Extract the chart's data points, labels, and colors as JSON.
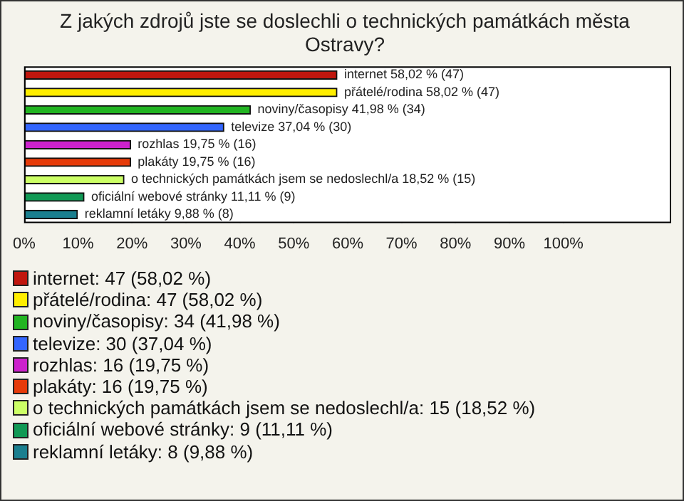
{
  "chart_data": {
    "type": "bar",
    "orientation": "horizontal",
    "title": "Z jakých zdrojů jste se doslechli o technických památkách města Ostravy?",
    "categories": [
      "internet",
      "přátelé/rodina",
      "noviny/časopisy",
      "televize",
      "rozhlas",
      "plakáty",
      "o technických památkách jsem se nedoslechl/a",
      "oficiální webové stránky",
      "reklamní letáky"
    ],
    "values": [
      58.02,
      58.02,
      41.98,
      37.04,
      19.75,
      19.75,
      18.52,
      11.11,
      9.88
    ],
    "value_labels": [
      "58,02 % (47)",
      "58,02 % (47)",
      "41,98 % (34)",
      "37,04 % (30)",
      "19,75 % (16)",
      "19,75 % (16)",
      "18,52 % (15)",
      "11,11 % (9)",
      "9,88 % (8)"
    ],
    "colors": [
      "#c0160e",
      "#ffee00",
      "#22b422",
      "#3366ff",
      "#cc22cc",
      "#e63b0a",
      "#ccff66",
      "#119955",
      "#1a7f8f"
    ],
    "xlim": [
      0,
      120
    ],
    "xticks": [
      {
        "value": 0,
        "label": "0%"
      },
      {
        "value": 10,
        "label": "10%"
      },
      {
        "value": 20,
        "label": "20%"
      },
      {
        "value": 30,
        "label": "30%"
      },
      {
        "value": 40,
        "label": "40%"
      },
      {
        "value": 50,
        "label": "50%"
      },
      {
        "value": 60,
        "label": "60%"
      },
      {
        "value": 70,
        "label": "70%"
      },
      {
        "value": 80,
        "label": "80%"
      },
      {
        "value": 90,
        "label": "90%"
      },
      {
        "value": 100,
        "label": "100%"
      }
    ],
    "grid": "x",
    "tick_labels": "x",
    "annotations": [
      "internet: 47 (58,02 %)",
      "přátelé/rodina: 47 (58,02 %)",
      "noviny/časopisy: 34 (41,98 %)",
      "televize: 30 (37,04 %)",
      "rozhlas: 16 (19,75 %)",
      "plakáty: 16 (19,75 %)",
      "o technických památkách jsem se nedoslechl/a: 15 (18,52 %)",
      "oficiální webové stránky: 9 (11,11 %)",
      "reklamní letáky: 8 (9,88 %)"
    ]
  }
}
